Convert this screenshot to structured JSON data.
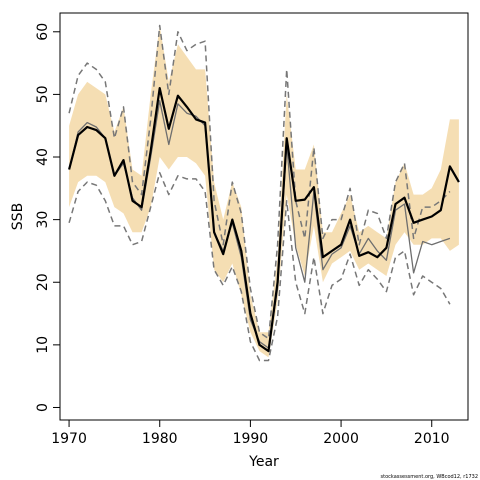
{
  "chart_data": {
    "type": "line",
    "title": "",
    "xlabel": "Year",
    "ylabel": "SSB",
    "xlim": [
      1969,
      2014
    ],
    "ylim": [
      -2,
      63
    ],
    "xticks": [
      1970,
      1980,
      1990,
      2000,
      2010
    ],
    "yticks": [
      0,
      10,
      20,
      30,
      40,
      50,
      60
    ],
    "grid": false,
    "legend": "none",
    "colors": {
      "band": "#f5deb3",
      "estimate": "#000000",
      "previous": "#6e6e6e",
      "previous_ci": "#777777"
    },
    "footnote": "stockassessment.org, WBcod12, r1732",
    "series": [
      {
        "role": "band",
        "x": [
          1970,
          1971,
          1972,
          1973,
          1974,
          1975,
          1976,
          1977,
          1978,
          1979,
          1980,
          1981,
          1982,
          1983,
          1984,
          1985,
          1986,
          1987,
          1988,
          1989,
          1990,
          1991,
          1992,
          1993,
          1994,
          1995,
          1996,
          1997,
          1998,
          1999,
          2000,
          2001,
          2002,
          2003,
          2004,
          2005,
          2006,
          2007,
          2008,
          2009,
          2010,
          2011,
          2012,
          2013
        ],
        "lower": [
          32,
          36,
          37,
          37,
          36,
          32,
          31,
          28,
          28,
          32,
          40,
          38,
          40,
          40,
          39,
          37,
          22,
          20,
          23,
          18,
          12,
          9,
          8,
          17,
          34,
          26,
          21,
          29,
          20,
          23,
          24,
          25,
          22,
          23,
          22,
          21,
          26,
          28,
          26,
          26,
          27,
          27,
          25,
          26
        ],
        "upper": [
          45,
          50,
          52,
          51,
          50,
          44,
          48,
          38,
          37,
          50,
          61,
          52,
          58,
          56,
          54,
          54,
          36,
          30,
          36,
          32,
          18,
          12,
          12,
          24,
          50,
          38,
          38,
          42,
          28,
          28,
          31,
          34,
          28,
          29,
          28,
          27,
          36,
          39,
          34,
          34,
          35,
          38,
          46,
          46
        ]
      },
      {
        "role": "estimate",
        "x": [
          1970,
          1971,
          1972,
          1973,
          1974,
          1975,
          1976,
          1977,
          1978,
          1979,
          1980,
          1981,
          1982,
          1983,
          1984,
          1985,
          1986,
          1987,
          1988,
          1989,
          1990,
          1991,
          1992,
          1993,
          1994,
          1995,
          1996,
          1997,
          1998,
          1999,
          2000,
          2001,
          2002,
          2003,
          2004,
          2005,
          2006,
          2007,
          2008,
          2009,
          2010,
          2011,
          2012,
          2013
        ],
        "values": [
          38,
          43.5,
          44.8,
          44.3,
          43,
          37,
          39.5,
          33,
          32,
          41,
          51,
          44.5,
          49.8,
          48,
          46,
          45.5,
          28,
          24.5,
          30,
          25,
          15,
          10,
          9,
          20,
          43,
          33,
          33.2,
          35.2,
          24,
          25,
          26,
          30,
          24.2,
          24.8,
          24,
          25.5,
          32.5,
          33.5,
          29.5,
          30,
          30.5,
          31.5,
          38.5,
          36
        ]
      },
      {
        "role": "previous",
        "x": [
          1970,
          1971,
          1972,
          1973,
          1974,
          1975,
          1976,
          1977,
          1978,
          1979,
          1980,
          1981,
          1982,
          1983,
          1984,
          1985,
          1986,
          1987,
          1988,
          1989,
          1990,
          1991,
          1992,
          1993,
          1994,
          1995,
          1996,
          1997,
          1998,
          1999,
          2000,
          2001,
          2002,
          2003,
          2004,
          2005,
          2006,
          2007,
          2008,
          2009,
          2010,
          2011,
          2012
        ],
        "values": [
          38,
          44,
          45.5,
          44.8,
          43,
          37,
          39,
          33.5,
          31.5,
          40,
          49,
          42,
          48.5,
          47,
          46.5,
          45,
          28,
          25,
          29.5,
          24,
          14,
          10.5,
          9.5,
          19,
          42,
          25.5,
          20,
          34.5,
          22,
          24.5,
          25.5,
          29,
          24.5,
          27,
          25,
          23.5,
          31.5,
          32.5,
          21.5,
          26.5,
          26,
          26.5,
          27
        ]
      },
      {
        "role": "previous-upper",
        "x": [
          1970,
          1971,
          1972,
          1973,
          1974,
          1975,
          1976,
          1977,
          1978,
          1979,
          1980,
          1981,
          1982,
          1983,
          1984,
          1985,
          1986,
          1987,
          1988,
          1989,
          1990,
          1991,
          1992,
          1993,
          1994,
          1995,
          1996,
          1997,
          1998,
          1999,
          2000,
          2001,
          2002,
          2003,
          2004,
          2005,
          2006,
          2007,
          2008,
          2009,
          2010,
          2011,
          2012
        ],
        "values": [
          47,
          53,
          55,
          54,
          52,
          43,
          48,
          36,
          34,
          46,
          61,
          50,
          60,
          57,
          58,
          58.5,
          33,
          26,
          36,
          31,
          19,
          12,
          11,
          26,
          54,
          33,
          27,
          41.5,
          27,
          30,
          30,
          35,
          26,
          31.5,
          31,
          27,
          36,
          39,
          27,
          32,
          32,
          33,
          34.5
        ]
      },
      {
        "role": "previous-lower",
        "x": [
          1970,
          1971,
          1972,
          1973,
          1974,
          1975,
          1976,
          1977,
          1978,
          1979,
          1980,
          1981,
          1982,
          1983,
          1984,
          1985,
          1986,
          1987,
          1988,
          1989,
          1990,
          1991,
          1992,
          1993,
          1994,
          1995,
          1996,
          1997,
          1998,
          1999,
          2000,
          2001,
          2002,
          2003,
          2004,
          2005,
          2006,
          2007,
          2008,
          2009,
          2010,
          2011,
          2012
        ],
        "values": [
          29.5,
          34.5,
          36,
          35.5,
          33,
          29,
          29,
          26,
          26.5,
          32,
          37.5,
          34,
          37,
          36.5,
          36.5,
          34.5,
          22,
          19.5,
          22.5,
          18.5,
          10.5,
          7.5,
          7.5,
          14.5,
          33,
          20,
          15,
          24,
          15,
          19.5,
          20.5,
          24.5,
          19.5,
          22,
          20.5,
          18.5,
          24,
          25,
          18,
          21,
          20,
          19,
          16.5
        ]
      }
    ]
  }
}
